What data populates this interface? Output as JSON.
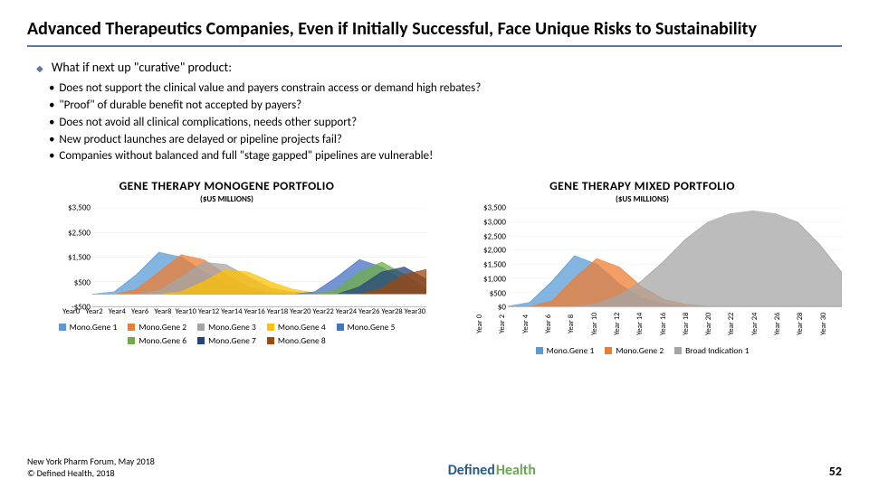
{
  "title": "Advanced Therapeutics Companies, Even if Initially Successful, Face Unique Risks to Sustainability",
  "lead": "What if next up \"curative\" product:",
  "bullets": [
    "Does not support the clinical value and payers constrain access or demand high rebates?",
    "\"Proof\" of durable benefit not accepted by payers?",
    "Does not avoid all clinical complications, needs other support?",
    "New product launches are delayed or pipeline projects fail?",
    "Companies without balanced and full \"stage gapped\" pipelines are vulnerable!"
  ],
  "chart1": {
    "type": "area",
    "title": "GENE THERAPY MONOGENE PORTFOLIO",
    "subtitle": "($US MILLIONS)",
    "yticks": [
      "$3,500",
      "$2,500",
      "$1,500",
      "$500",
      "-$500"
    ],
    "ylim": [
      -500,
      3500
    ],
    "xlabels": [
      "Year 0",
      "Year 2",
      "Year 4",
      "Year 6",
      "Year 8",
      "Year 10",
      "Year 12",
      "Year 14",
      "Year 16",
      "Year 18",
      "Year 20",
      "Year 22",
      "Year 24",
      "Year 26",
      "Year 28",
      "Year 30"
    ],
    "grid_color": "#e6e6e6",
    "series": [
      {
        "name": "Mono.Gene 1",
        "color": "#5b9bd5",
        "points": [
          0,
          100,
          800,
          1700,
          1500,
          900,
          400,
          150,
          50,
          0,
          0,
          0,
          0,
          0,
          0,
          0
        ]
      },
      {
        "name": "Mono.Gene 2",
        "color": "#ed7d31",
        "points": [
          0,
          0,
          200,
          900,
          1600,
          1400,
          800,
          300,
          100,
          0,
          0,
          0,
          0,
          0,
          0,
          0
        ]
      },
      {
        "name": "Mono.Gene 3",
        "color": "#a5a5a5",
        "points": [
          0,
          0,
          0,
          150,
          700,
          1300,
          1200,
          700,
          250,
          80,
          0,
          0,
          0,
          0,
          0,
          0
        ]
      },
      {
        "name": "Mono.Gene 4",
        "color": "#ffc000",
        "points": [
          0,
          0,
          0,
          0,
          100,
          500,
          1000,
          900,
          500,
          200,
          50,
          0,
          0,
          0,
          0,
          0
        ]
      },
      {
        "name": "Mono.Gene 5",
        "color": "#4472c4",
        "points": [
          0,
          0,
          0,
          0,
          0,
          0,
          0,
          0,
          0,
          0,
          100,
          700,
          1400,
          1100,
          500,
          100
        ]
      },
      {
        "name": "Mono.Gene 6",
        "color": "#70ad47",
        "points": [
          0,
          0,
          0,
          0,
          0,
          0,
          0,
          0,
          0,
          0,
          0,
          200,
          900,
          1300,
          800,
          200
        ]
      },
      {
        "name": "Mono.Gene 7",
        "color": "#264478",
        "points": [
          0,
          0,
          0,
          0,
          0,
          0,
          0,
          0,
          0,
          0,
          0,
          0,
          300,
          900,
          1100,
          600
        ]
      },
      {
        "name": "Mono.Gene 8",
        "color": "#9e480e",
        "points": [
          0,
          0,
          0,
          0,
          0,
          0,
          0,
          0,
          0,
          0,
          0,
          0,
          0,
          250,
          800,
          1000
        ]
      }
    ]
  },
  "chart2": {
    "type": "area",
    "title": "GENE THERAPY MIXED PORTFOLIO",
    "subtitle": "($US MILLIONS)",
    "yticks": [
      "$3,500",
      "$3,000",
      "$2,500",
      "$2,000",
      "$1,500",
      "$1,000",
      "$500",
      "$0"
    ],
    "ylim": [
      0,
      3500
    ],
    "xlabels": [
      "Year 0",
      "Year 2",
      "Year 4",
      "Year 6",
      "Year 8",
      "Year 10",
      "Year 12",
      "Year 14",
      "Year 16",
      "Year 18",
      "Year 20",
      "Year 22",
      "Year 24",
      "Year 26",
      "Year 28",
      "Year 30"
    ],
    "grid_color": "#e6e6e6",
    "series": [
      {
        "name": "Mono.Gene 1",
        "color": "#5b9bd5",
        "points": [
          0,
          150,
          900,
          1800,
          1500,
          800,
          300,
          100,
          0,
          0,
          0,
          0,
          0,
          0,
          0,
          0
        ]
      },
      {
        "name": "Mono.Gene 2",
        "color": "#ed7d31",
        "points": [
          0,
          0,
          200,
          1000,
          1700,
          1400,
          700,
          250,
          80,
          0,
          0,
          0,
          0,
          0,
          0,
          0
        ]
      },
      {
        "name": "Broad Indication 1",
        "color": "#a5a5a5",
        "points": [
          0,
          0,
          0,
          0,
          100,
          400,
          900,
          1600,
          2400,
          3000,
          3300,
          3400,
          3300,
          3000,
          2200,
          1200
        ]
      }
    ]
  },
  "footer": {
    "line1": "New York Pharm Forum, May 2018",
    "line2": "© Defined Health, 2018",
    "logo1": "Defined",
    "logo2": "Health",
    "page": "52"
  }
}
